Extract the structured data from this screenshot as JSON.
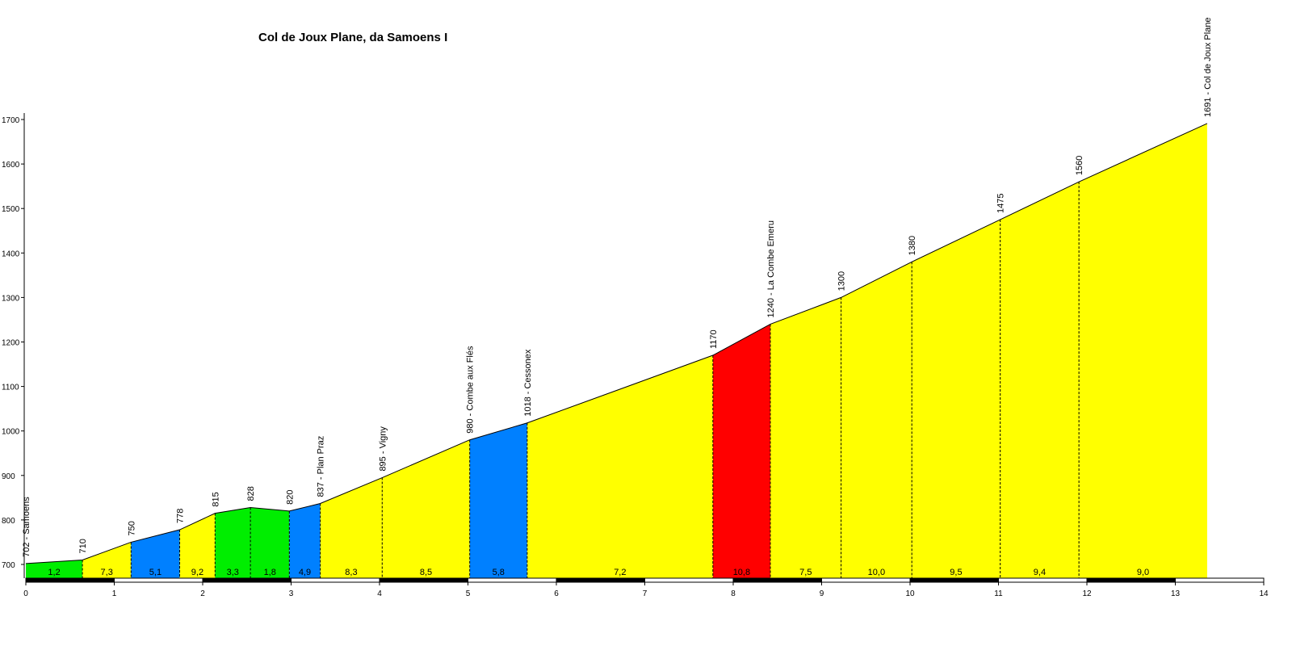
{
  "chart_data": {
    "type": "area",
    "title": "Col de Joux Plane, da Samoens I",
    "xlabel": "",
    "ylabel": "",
    "xlim": [
      0,
      14
    ],
    "ylim": [
      660,
      1700
    ],
    "x_ticks": [
      0,
      1,
      2,
      3,
      4,
      5,
      6,
      7,
      8,
      9,
      10,
      11,
      12,
      13,
      14
    ],
    "y_ticks": [
      700,
      800,
      900,
      1000,
      1100,
      1200,
      1300,
      1400,
      1500,
      1600,
      1700
    ],
    "grid": false,
    "colors": {
      "green": "#00ee00",
      "yellow": "#ffff00",
      "blue": "#0080ff",
      "red": "#ff0000",
      "outline": "#000000"
    },
    "points": [
      {
        "x": 0.0,
        "y": 702,
        "label": "702 - Samoens"
      },
      {
        "x": 0.64,
        "y": 710,
        "label": "710"
      },
      {
        "x": 1.19,
        "y": 750,
        "label": "750"
      },
      {
        "x": 1.74,
        "y": 778,
        "label": "778"
      },
      {
        "x": 2.14,
        "y": 815,
        "label": "815"
      },
      {
        "x": 2.54,
        "y": 828,
        "label": "828"
      },
      {
        "x": 2.98,
        "y": 820,
        "label": "820"
      },
      {
        "x": 3.33,
        "y": 837,
        "label": "837 - Plan Praz"
      },
      {
        "x": 4.03,
        "y": 895,
        "label": "895 - Vigny"
      },
      {
        "x": 5.02,
        "y": 980,
        "label": "980 - Combe aux Flés"
      },
      {
        "x": 5.67,
        "y": 1018,
        "label": "1018 - Cessonex"
      },
      {
        "x": 7.77,
        "y": 1170,
        "label": "1170"
      },
      {
        "x": 8.42,
        "y": 1240,
        "label": "1240 - La Combe Emeru"
      },
      {
        "x": 9.22,
        "y": 1300,
        "label": "1300"
      },
      {
        "x": 10.02,
        "y": 1380,
        "label": "1380"
      },
      {
        "x": 11.02,
        "y": 1475,
        "label": "1475"
      },
      {
        "x": 11.91,
        "y": 1560,
        "label": "1560"
      },
      {
        "x": 13.36,
        "y": 1691,
        "label": "1691 - Col de Joux Plane"
      }
    ],
    "segments": [
      {
        "gradient": "1,2",
        "color": "green"
      },
      {
        "gradient": "7,3",
        "color": "yellow"
      },
      {
        "gradient": "5,1",
        "color": "blue"
      },
      {
        "gradient": "9,2",
        "color": "yellow"
      },
      {
        "gradient": "3,3",
        "color": "green"
      },
      {
        "gradient": "1,8",
        "color": "green"
      },
      {
        "gradient": "4,9",
        "color": "blue"
      },
      {
        "gradient": "8,3",
        "color": "yellow"
      },
      {
        "gradient": "8,5",
        "color": "yellow"
      },
      {
        "gradient": "5,8",
        "color": "blue"
      },
      {
        "gradient": "7,2",
        "color": "yellow"
      },
      {
        "gradient": "10,8",
        "color": "red"
      },
      {
        "gradient": "7,5",
        "color": "yellow"
      },
      {
        "gradient": "10,0",
        "color": "yellow"
      },
      {
        "gradient": "9,5",
        "color": "yellow"
      },
      {
        "gradient": "9,4",
        "color": "yellow"
      },
      {
        "gradient": "9,0",
        "color": "yellow"
      }
    ]
  }
}
